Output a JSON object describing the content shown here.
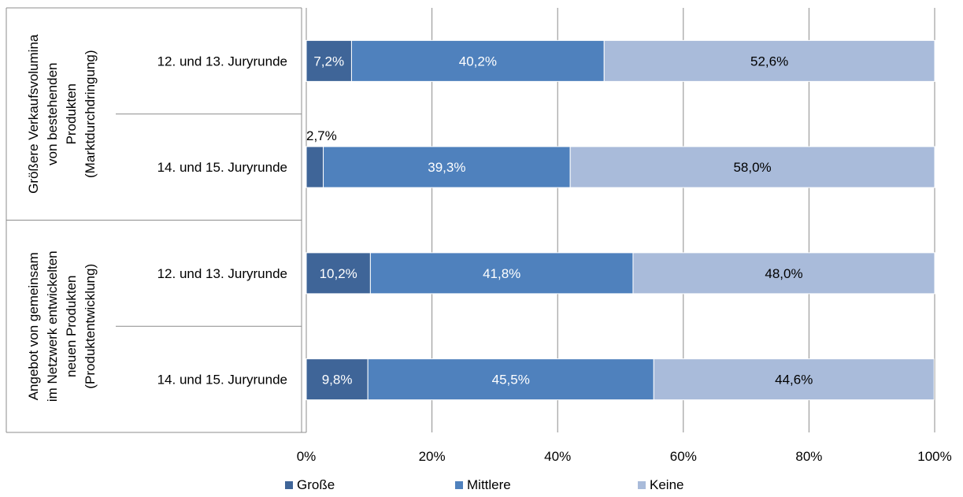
{
  "chart_data": {
    "type": "bar",
    "orientation": "horizontal",
    "stacked": true,
    "groups": [
      {
        "label_lines": [
          "Größere Verkaufsvolumina",
          "von bestehenden",
          "Produkten",
          "(Marktdurchdringung)"
        ],
        "categories": [
          "12. und 13. Juryrunde",
          "14. und 15. Juryrunde"
        ]
      },
      {
        "label_lines": [
          "Angebot von gemeinsam",
          "im Netzwerk entwickelten",
          "neuen Produkten",
          "(Produktentwicklung)"
        ],
        "categories": [
          "12. und 13. Juryrunde",
          "14. und 15. Juryrunde"
        ]
      }
    ],
    "series": [
      {
        "name": "Große",
        "color": "#3F6598",
        "label_color": "#FFFFFF",
        "values": [
          7.2,
          2.7,
          10.2,
          9.8
        ],
        "labels": [
          "7,2%",
          "2,7%",
          "10,2%",
          "9,8%"
        ]
      },
      {
        "name": "Mittlere",
        "color": "#4F81BD",
        "label_color": "#FFFFFF",
        "values": [
          40.2,
          39.3,
          41.8,
          45.5
        ],
        "labels": [
          "40,2%",
          "39,3%",
          "41,8%",
          "45,5%"
        ]
      },
      {
        "name": "Keine",
        "color": "#A9BBDA",
        "label_color": "#000000",
        "values": [
          52.6,
          58.0,
          48.0,
          44.6
        ],
        "labels": [
          "52,6%",
          "58,0%",
          "48,0%",
          "44,6%"
        ]
      }
    ],
    "xlim": [
      0,
      100
    ],
    "x_ticks": [
      "0%",
      "20%",
      "40%",
      "60%",
      "80%",
      "100%"
    ],
    "grid": true,
    "legend": "bottom"
  }
}
